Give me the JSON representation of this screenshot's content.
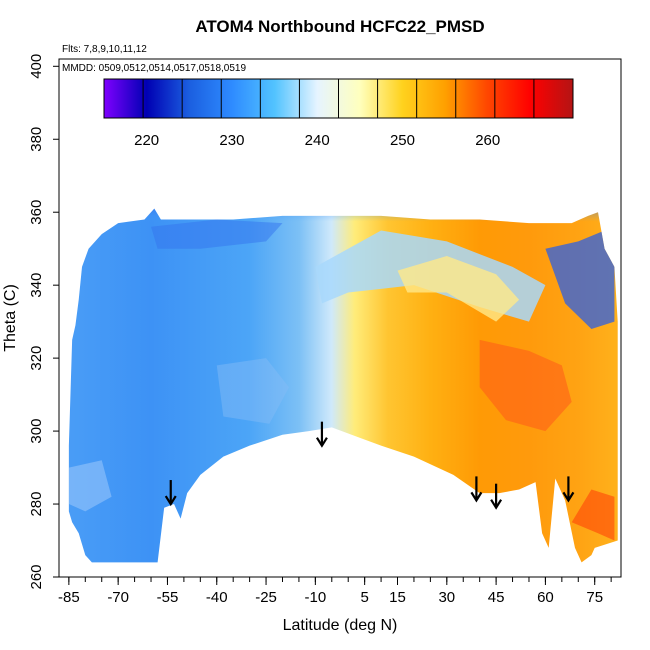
{
  "chart_data": {
    "type": "heatmap",
    "title": "ATOM4 Northbound HCFC22_PMSD",
    "subtitle_flights": "Flts: 7,8,9,10,11,12",
    "subtitle_dates": "MMDD: 0509,0512,0514,0517,0518,0519",
    "xlabel": "Latitude (deg N)",
    "ylabel": "Theta (C)",
    "xlim": [
      -88,
      83
    ],
    "ylim": [
      260,
      402
    ],
    "x_ticks": [
      -85,
      -70,
      -55,
      -40,
      -25,
      -10,
      5,
      15,
      30,
      45,
      60,
      75
    ],
    "x_tick_labels": [
      "-85",
      "-70",
      "-55",
      "-40",
      "-25",
      "-10",
      "5",
      "15",
      "30",
      "45",
      "60",
      "75"
    ],
    "x_minor_step": 5,
    "y_ticks": [
      260,
      280,
      300,
      320,
      340,
      360,
      380,
      400
    ],
    "y_tick_labels": [
      "260",
      "280",
      "300",
      "320",
      "340",
      "360",
      "380",
      "400"
    ],
    "colorbar": {
      "range": [
        215,
        270
      ],
      "ticks": [
        220,
        230,
        240,
        250,
        260
      ],
      "tick_labels": [
        "220",
        "230",
        "240",
        "250",
        "260"
      ],
      "colors": [
        "#7f00ff",
        "#0000b3",
        "#1b5fe0",
        "#2e8bff",
        "#52c3ff",
        "#e6f4ff",
        "#ffffbe",
        "#ffd21e",
        "#ffa000",
        "#ff4600",
        "#ff0000",
        "#b41414"
      ]
    },
    "field_notes": "Mostly 225-235 (blue) south of ~-5 deg N; 245-255 (yellow-orange) north of ~5 deg N below 340 K; lower values 220-230 near top (350-360 K) and at high northern latitudes",
    "arrows_latitude": [
      -54,
      -8,
      39,
      45,
      67
    ],
    "arrows_theta": [
      280,
      296,
      281,
      279,
      281
    ]
  }
}
